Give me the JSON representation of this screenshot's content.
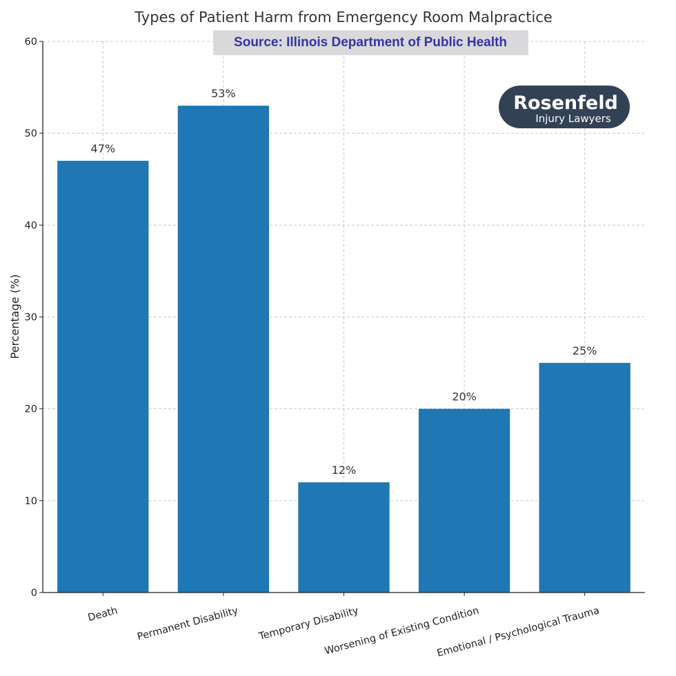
{
  "chart_data": {
    "type": "bar",
    "title": "Types of Patient Harm from Emergency Room Malpractice",
    "subtitle": "Source: Illinois Department of Public Health",
    "xlabel": "",
    "ylabel": "Percentage (%)",
    "categories": [
      "Death",
      "Permanent Disability",
      "Temporary Disability",
      "Worsening of Existing Condition",
      "Emotional / Psychological Trauma"
    ],
    "values": [
      47,
      53,
      12,
      20,
      25
    ],
    "value_labels": [
      "47%",
      "53%",
      "12%",
      "20%",
      "25%"
    ],
    "ylim": [
      0,
      60
    ],
    "yticks": [
      "0",
      "10",
      "20",
      "30",
      "40",
      "50",
      "60"
    ],
    "grid": true,
    "bar_color": "#1f77b4"
  },
  "logo": {
    "name": "Rosenfeld",
    "tagline": "Injury Lawyers",
    "background": "#334155"
  },
  "source_box": {
    "text_color": "#3333aa",
    "background": "#d9d9dc"
  }
}
